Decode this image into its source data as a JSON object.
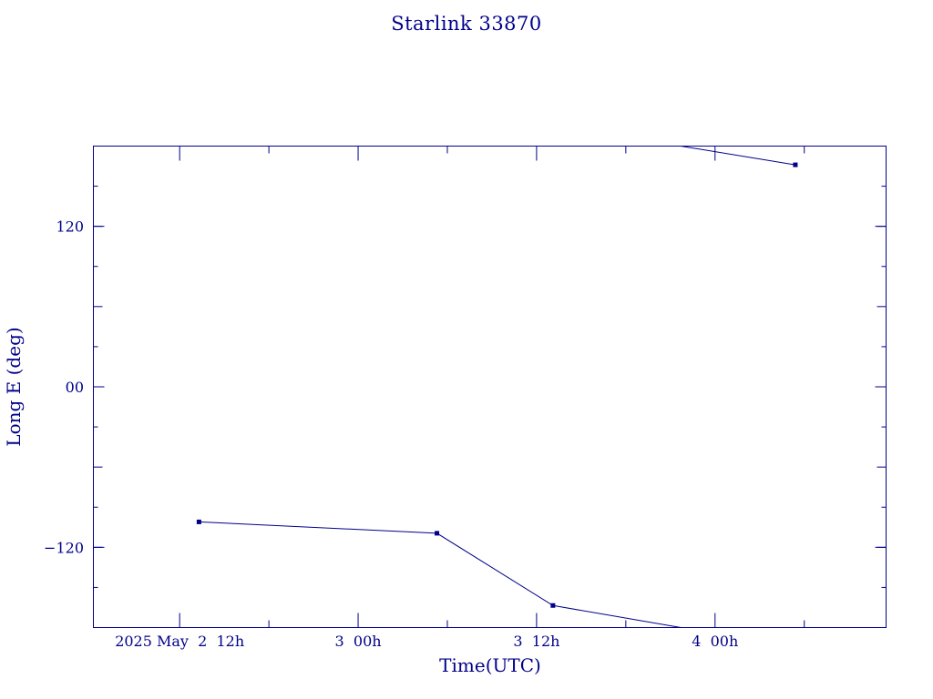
{
  "colors": {
    "ink": "#00008b",
    "background": "#ffffff"
  },
  "chart_data": {
    "type": "line",
    "title": "Starlink 33870",
    "xlabel": "Time(UTC)",
    "ylabel": "Long E (deg)",
    "x_unit": "hours from 2025 May 2 00h UTC",
    "xlim": [
      6.2,
      59.5
    ],
    "ylim": [
      -180,
      180
    ],
    "grid": false,
    "x_ticks": [
      {
        "x": 12,
        "label": "2025 May  2  12h"
      },
      {
        "x": 24,
        "label": "3  00h"
      },
      {
        "x": 36,
        "label": "3  12h"
      },
      {
        "x": 48,
        "label": "4  00h"
      }
    ],
    "y_ticks": [
      {
        "y": 120,
        "label": "120"
      },
      {
        "y": 0,
        "label": "00"
      },
      {
        "y": -120,
        "label": "−120"
      }
    ],
    "series": [
      {
        "segments": [
          [
            [
              13.3,
              -101
            ],
            [
              29.3,
              -109.5
            ],
            [
              37.1,
              -163.5
            ],
            [
              45.7,
              -180
            ]
          ],
          [
            [
              45.7,
              180
            ],
            [
              53.4,
              166
            ]
          ]
        ],
        "markers": [
          [
            13.3,
            -101
          ],
          [
            29.3,
            -109.5
          ],
          [
            37.1,
            -163.5
          ],
          [
            53.4,
            166
          ]
        ]
      }
    ]
  }
}
